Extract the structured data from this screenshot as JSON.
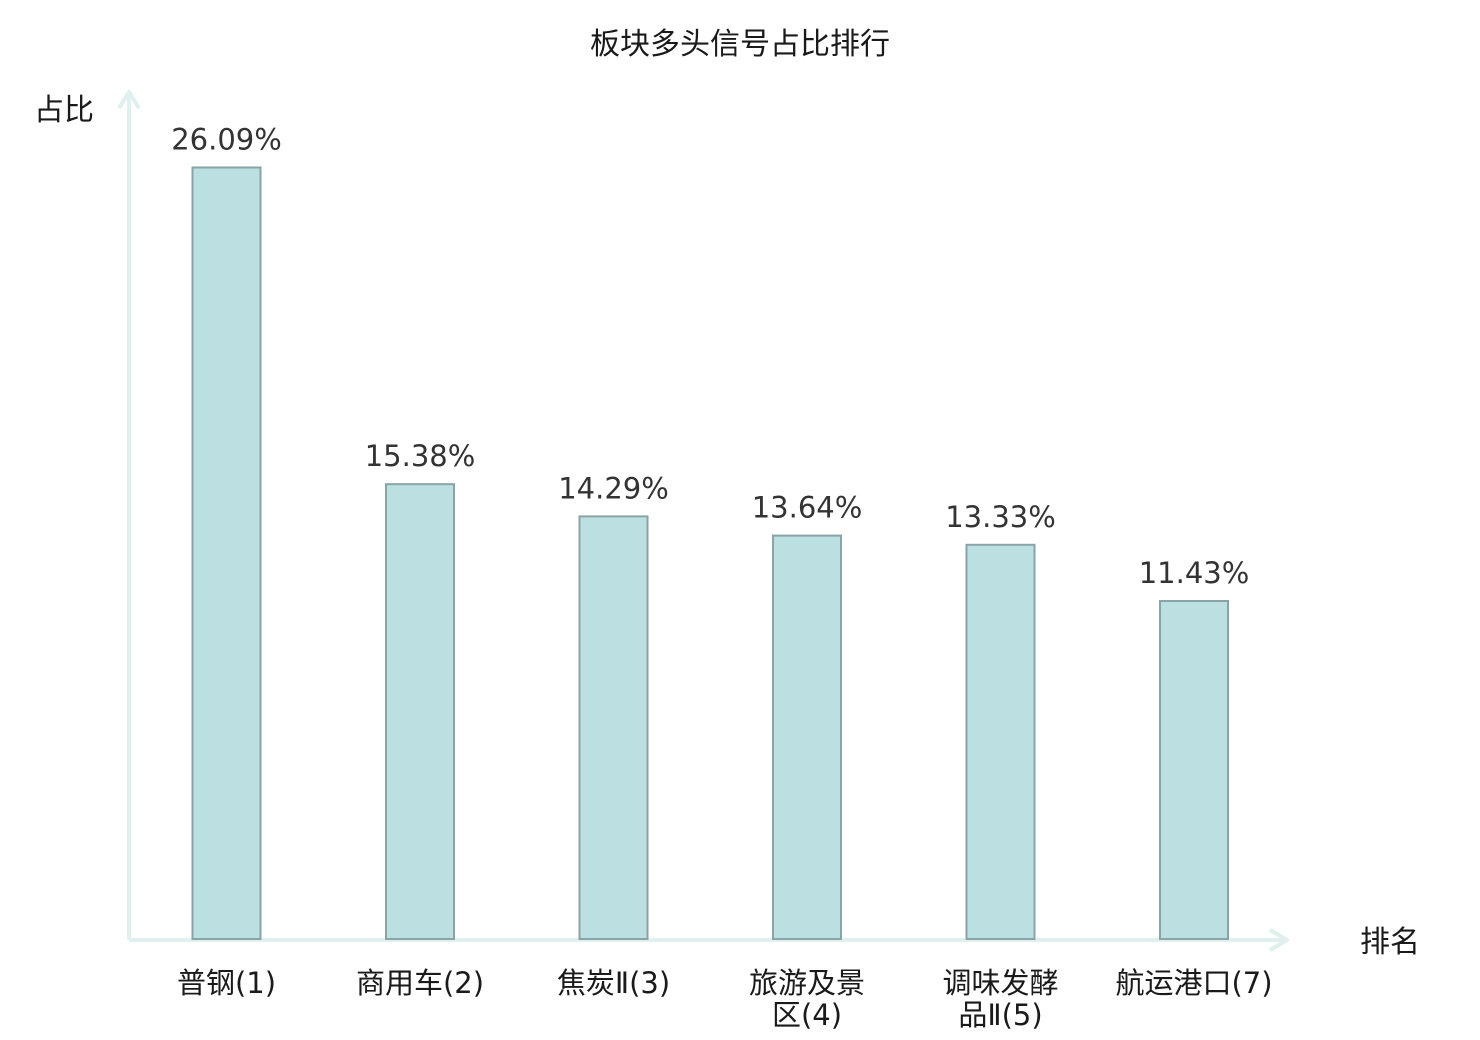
{
  "chart_data": {
    "type": "bar",
    "title": "板块多头信号占比排行",
    "xlabel": "排名",
    "ylabel": "占比",
    "ylim": [
      0,
      28
    ],
    "grid": false,
    "categories": [
      {
        "lines": [
          "普钢(1)"
        ],
        "highlight": false
      },
      {
        "lines": [
          "商用车(2)"
        ],
        "highlight": false
      },
      {
        "lines": [
          "焦炭Ⅱ(3)"
        ],
        "highlight": false
      },
      {
        "lines": [
          "旅游及景",
          "区(4)"
        ],
        "highlight": false
      },
      {
        "lines": [
          "调味发酵",
          "品Ⅱ(5)"
        ],
        "highlight": false
      },
      {
        "lines": [
          "航运港口(7)"
        ],
        "highlight": true
      }
    ],
    "values": [
      26.09,
      15.38,
      14.29,
      13.64,
      13.33,
      11.43
    ],
    "value_labels": [
      "26.09%",
      "15.38%",
      "14.29%",
      "13.64%",
      "13.33%",
      "11.43%"
    ],
    "colors": {
      "bar_fill": "#bce0e2",
      "bar_stroke": "#8aa3a6",
      "axis": "#dff0ee",
      "highlight_label": "#e0191f",
      "label": "#1a1a1a",
      "value_label": "#333333"
    }
  }
}
